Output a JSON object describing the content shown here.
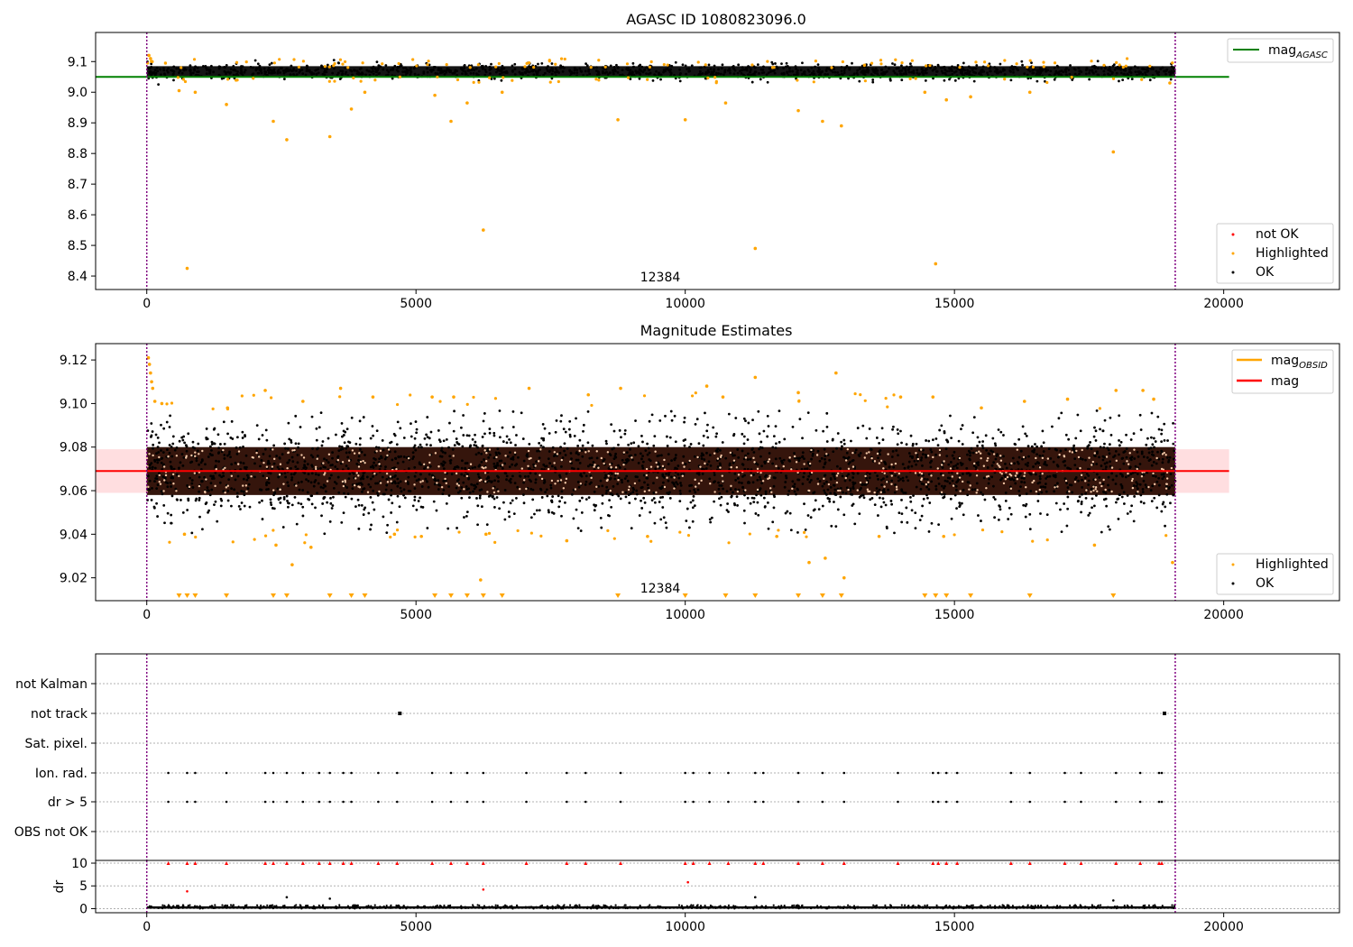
{
  "chart_data": [
    {
      "type": "scatter",
      "title": "AGASC ID 1080823096.0",
      "x_ticks": [
        0,
        5000,
        10000,
        15000,
        20000
      ],
      "xlim": [
        -950,
        22150
      ],
      "ylim": [
        8.356,
        9.195
      ],
      "y_ticks": [
        "8.4",
        "8.5",
        "8.6",
        "8.7",
        "8.8",
        "8.9",
        "9.0",
        "9.1"
      ],
      "annotation": "12384",
      "vlines_x": [
        0,
        19100
      ],
      "reference_line": {
        "name": "mag_AGASC",
        "y": 9.05,
        "x_range": [
          -950,
          20100
        ],
        "color": "#008000"
      },
      "ok_band": {
        "x_range": [
          0,
          19100
        ],
        "y_range": [
          9.05,
          9.085
        ],
        "color": "#000000"
      },
      "highlighted_points": [
        [
          40,
          9.12
        ],
        [
          70,
          9.11
        ],
        [
          100,
          9.1
        ],
        [
          600,
          9.005
        ],
        [
          750,
          8.425
        ],
        [
          900,
          9.0
        ],
        [
          1480,
          8.96
        ],
        [
          2350,
          8.905
        ],
        [
          2600,
          8.845
        ],
        [
          3400,
          8.855
        ],
        [
          3800,
          8.945
        ],
        [
          4050,
          9.0
        ],
        [
          5350,
          8.99
        ],
        [
          5650,
          8.905
        ],
        [
          5950,
          8.965
        ],
        [
          6250,
          8.55
        ],
        [
          6600,
          9.0
        ],
        [
          8750,
          8.91
        ],
        [
          10000,
          8.91
        ],
        [
          10750,
          8.965
        ],
        [
          11300,
          8.49
        ],
        [
          12100,
          8.94
        ],
        [
          12550,
          8.905
        ],
        [
          12900,
          8.89
        ],
        [
          14450,
          9.0
        ],
        [
          14650,
          8.44
        ],
        [
          14850,
          8.975
        ],
        [
          15300,
          8.985
        ],
        [
          16400,
          9.0
        ],
        [
          17950,
          8.805
        ],
        [
          19000,
          9.03
        ]
      ],
      "legend": [
        "mag_AGASC",
        "not OK",
        "Highlighted",
        "OK"
      ],
      "legend_placement": [
        "top-right",
        "bottom-right"
      ],
      "colors": {
        "ok": "#000000",
        "highlighted": "#ffa500",
        "not_ok": "#ff0000"
      }
    },
    {
      "type": "scatter",
      "title": "Magnitude Estimates",
      "x_ticks": [
        0,
        5000,
        10000,
        15000,
        20000
      ],
      "xlim": [
        -950,
        22150
      ],
      "ylim": [
        9.0095,
        9.1275
      ],
      "y_ticks": [
        "9.02",
        "9.04",
        "9.06",
        "9.08",
        "9.10",
        "9.12"
      ],
      "annotation": "12384",
      "vlines_x": [
        0,
        19100
      ],
      "mean_mag": 9.069,
      "mag_band": [
        9.059,
        9.079
      ],
      "band_x_range": [
        -950,
        20100
      ],
      "core_band": {
        "x_range": [
          0,
          19100
        ],
        "y_range": [
          9.058,
          9.08
        ],
        "color": "#2a0a00"
      },
      "ok_spread": [
        9.04,
        9.097
      ],
      "highlighted_points": [
        [
          30,
          9.121
        ],
        [
          50,
          9.118
        ],
        [
          70,
          9.114
        ],
        [
          90,
          9.11
        ],
        [
          110,
          9.107
        ],
        [
          150,
          9.101
        ],
        [
          280,
          9.1
        ],
        [
          700,
          9.04
        ],
        [
          1500,
          9.098
        ],
        [
          2200,
          9.106
        ],
        [
          2400,
          9.035
        ],
        [
          2700,
          9.026
        ],
        [
          2900,
          9.101
        ],
        [
          3050,
          9.034
        ],
        [
          3600,
          9.107
        ],
        [
          4200,
          9.103
        ],
        [
          4600,
          9.04
        ],
        [
          5100,
          9.039
        ],
        [
          5300,
          9.103
        ],
        [
          5700,
          9.103
        ],
        [
          6200,
          9.019
        ],
        [
          6300,
          9.04
        ],
        [
          7100,
          9.107
        ],
        [
          7800,
          9.037
        ],
        [
          8200,
          9.104
        ],
        [
          8800,
          9.107
        ],
        [
          9300,
          9.039
        ],
        [
          10400,
          9.108
        ],
        [
          10700,
          9.103
        ],
        [
          11300,
          9.112
        ],
        [
          11700,
          9.039
        ],
        [
          12100,
          9.105
        ],
        [
          12300,
          9.027
        ],
        [
          12600,
          9.029
        ],
        [
          12800,
          9.114
        ],
        [
          12950,
          9.02
        ],
        [
          13600,
          9.039
        ],
        [
          14000,
          9.103
        ],
        [
          14600,
          9.103
        ],
        [
          14800,
          9.039
        ],
        [
          15500,
          9.098
        ],
        [
          16300,
          9.101
        ],
        [
          17100,
          9.102
        ],
        [
          17600,
          9.035
        ],
        [
          18000,
          9.106
        ],
        [
          18500,
          9.106
        ],
        [
          18700,
          9.102
        ],
        [
          19050,
          9.027
        ]
      ],
      "clipped_low_x": [
        600,
        750,
        900,
        1480,
        2350,
        2600,
        3400,
        3800,
        4050,
        5350,
        5650,
        5950,
        6250,
        6600,
        8750,
        10000,
        10750,
        11300,
        12100,
        12550,
        12900,
        14450,
        14650,
        14850,
        15300,
        16400,
        17950
      ],
      "legend": [
        "mag_OBSID",
        "mag",
        "Highlighted",
        "OK"
      ],
      "legend_placement": [
        "top-right",
        "bottom-right"
      ],
      "colors": {
        "mag": "#ff0000",
        "mag_obsid": "#ffa500",
        "band": "#ffc8cc"
      }
    },
    {
      "type": "scatter",
      "title": "",
      "x_ticks": [
        0,
        5000,
        10000,
        15000,
        20000
      ],
      "xlim": [
        -950,
        22150
      ],
      "categories": [
        "not Kalman",
        "not track",
        "Sat. pixel.",
        "Ion. rad.",
        "dr > 5",
        "OBS not OK"
      ],
      "vlines_x": [
        0,
        19100
      ],
      "flag_events_x": [
        400,
        750,
        900,
        1480,
        2200,
        2350,
        2600,
        2900,
        3200,
        3400,
        3650,
        3800,
        4300,
        4650,
        5300,
        5650,
        5950,
        6250,
        7050,
        7800,
        8150,
        8800,
        10000,
        10150,
        10450,
        10800,
        11300,
        11450,
        12100,
        12550,
        12950,
        13950,
        14600,
        14700,
        14850,
        15050,
        16050,
        16400,
        17050,
        17350,
        18000,
        18450,
        18800,
        18850
      ],
      "not_track_x": [
        4700,
        18900
      ],
      "dr_panel": {
        "ylabel": "dr",
        "ylim": [
          -0.9,
          10.6
        ],
        "y_ticks": [
          "0",
          "5",
          "10"
        ],
        "typical_dr": [
          0,
          0.5
        ],
        "notable_points": [
          [
            750,
            3.8
          ],
          [
            6250,
            4.2
          ],
          [
            10050,
            5.8
          ],
          [
            2600,
            2.5
          ],
          [
            3400,
            2.2
          ],
          [
            11300,
            2.5
          ],
          [
            17950,
            1.8
          ]
        ]
      }
    }
  ]
}
